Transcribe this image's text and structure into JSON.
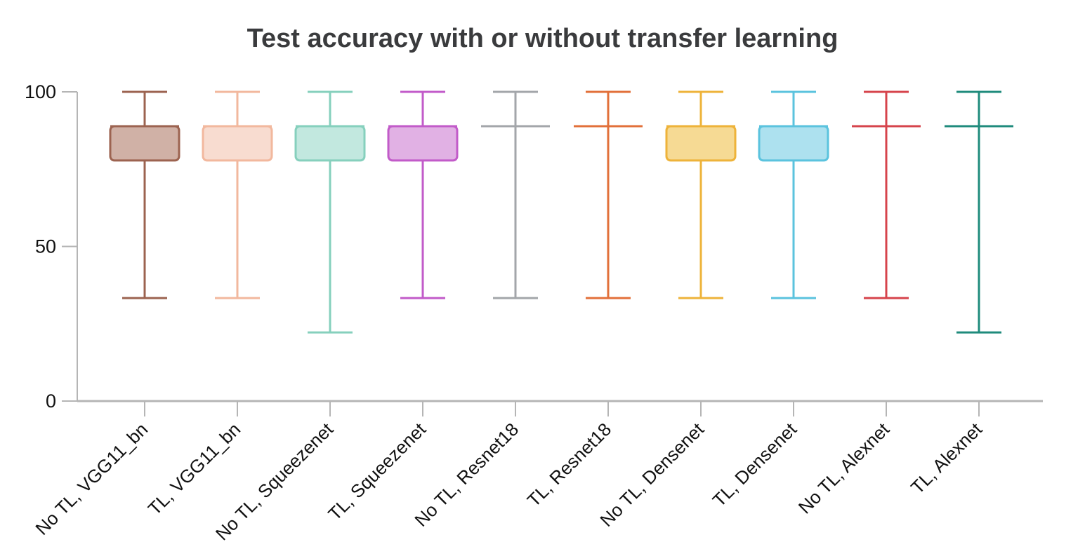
{
  "chart_data": {
    "type": "box",
    "title": "Test accuracy with or without transfer learning",
    "xlabel": "",
    "ylabel": "",
    "ylim": [
      0,
      100
    ],
    "yticks": [
      0,
      50,
      100
    ],
    "grid": false,
    "legend": "none",
    "categories": [
      "No TL, VGG11_bn",
      "TL, VGG11_bn",
      "No TL, Squeezenet",
      "TL, Squeezenet",
      "No TL, Resnet18",
      "TL, Resnet18",
      "No TL, Densenet",
      "TL, Densenet",
      "No TL, Alexnet",
      "TL, Alexnet"
    ],
    "boxes": [
      {
        "min": 33.3,
        "q1": 77.8,
        "median": 88.9,
        "q3": 88.9,
        "max": 100,
        "color": "#9c6350",
        "fill": "#d0b1a6"
      },
      {
        "min": 33.3,
        "q1": 77.8,
        "median": 88.9,
        "q3": 88.9,
        "max": 100,
        "color": "#f2b89e",
        "fill": "#f8dcd0"
      },
      {
        "min": 22.2,
        "q1": 77.8,
        "median": 88.9,
        "q3": 88.9,
        "max": 100,
        "color": "#86d0bd",
        "fill": "#c2e8df"
      },
      {
        "min": 33.3,
        "q1": 77.8,
        "median": 88.9,
        "q3": 88.9,
        "max": 100,
        "color": "#c25bc9",
        "fill": "#e1b1e4"
      },
      {
        "min": 33.3,
        "q1": 88.9,
        "median": 88.9,
        "q3": 88.9,
        "max": 100,
        "color": "#a3a6aa",
        "fill": "#d3d5d7"
      },
      {
        "min": 33.3,
        "q1": 88.9,
        "median": 88.9,
        "q3": 88.9,
        "max": 100,
        "color": "#e2703a",
        "fill": "#f2b89c"
      },
      {
        "min": 33.3,
        "q1": 77.8,
        "median": 88.9,
        "q3": 88.9,
        "max": 100,
        "color": "#eeb33a",
        "fill": "#f6da94"
      },
      {
        "min": 33.3,
        "q1": 77.8,
        "median": 88.9,
        "q3": 88.9,
        "max": 100,
        "color": "#5bc3de",
        "fill": "#ade1ef"
      },
      {
        "min": 33.3,
        "q1": 88.9,
        "median": 88.9,
        "q3": 88.9,
        "max": 100,
        "color": "#d6444c",
        "fill": "#eaa1a5"
      },
      {
        "min": 22.2,
        "q1": 88.9,
        "median": 88.9,
        "q3": 88.9,
        "max": 100,
        "color": "#1f8b7c",
        "fill": "#8fc5bd"
      }
    ]
  }
}
